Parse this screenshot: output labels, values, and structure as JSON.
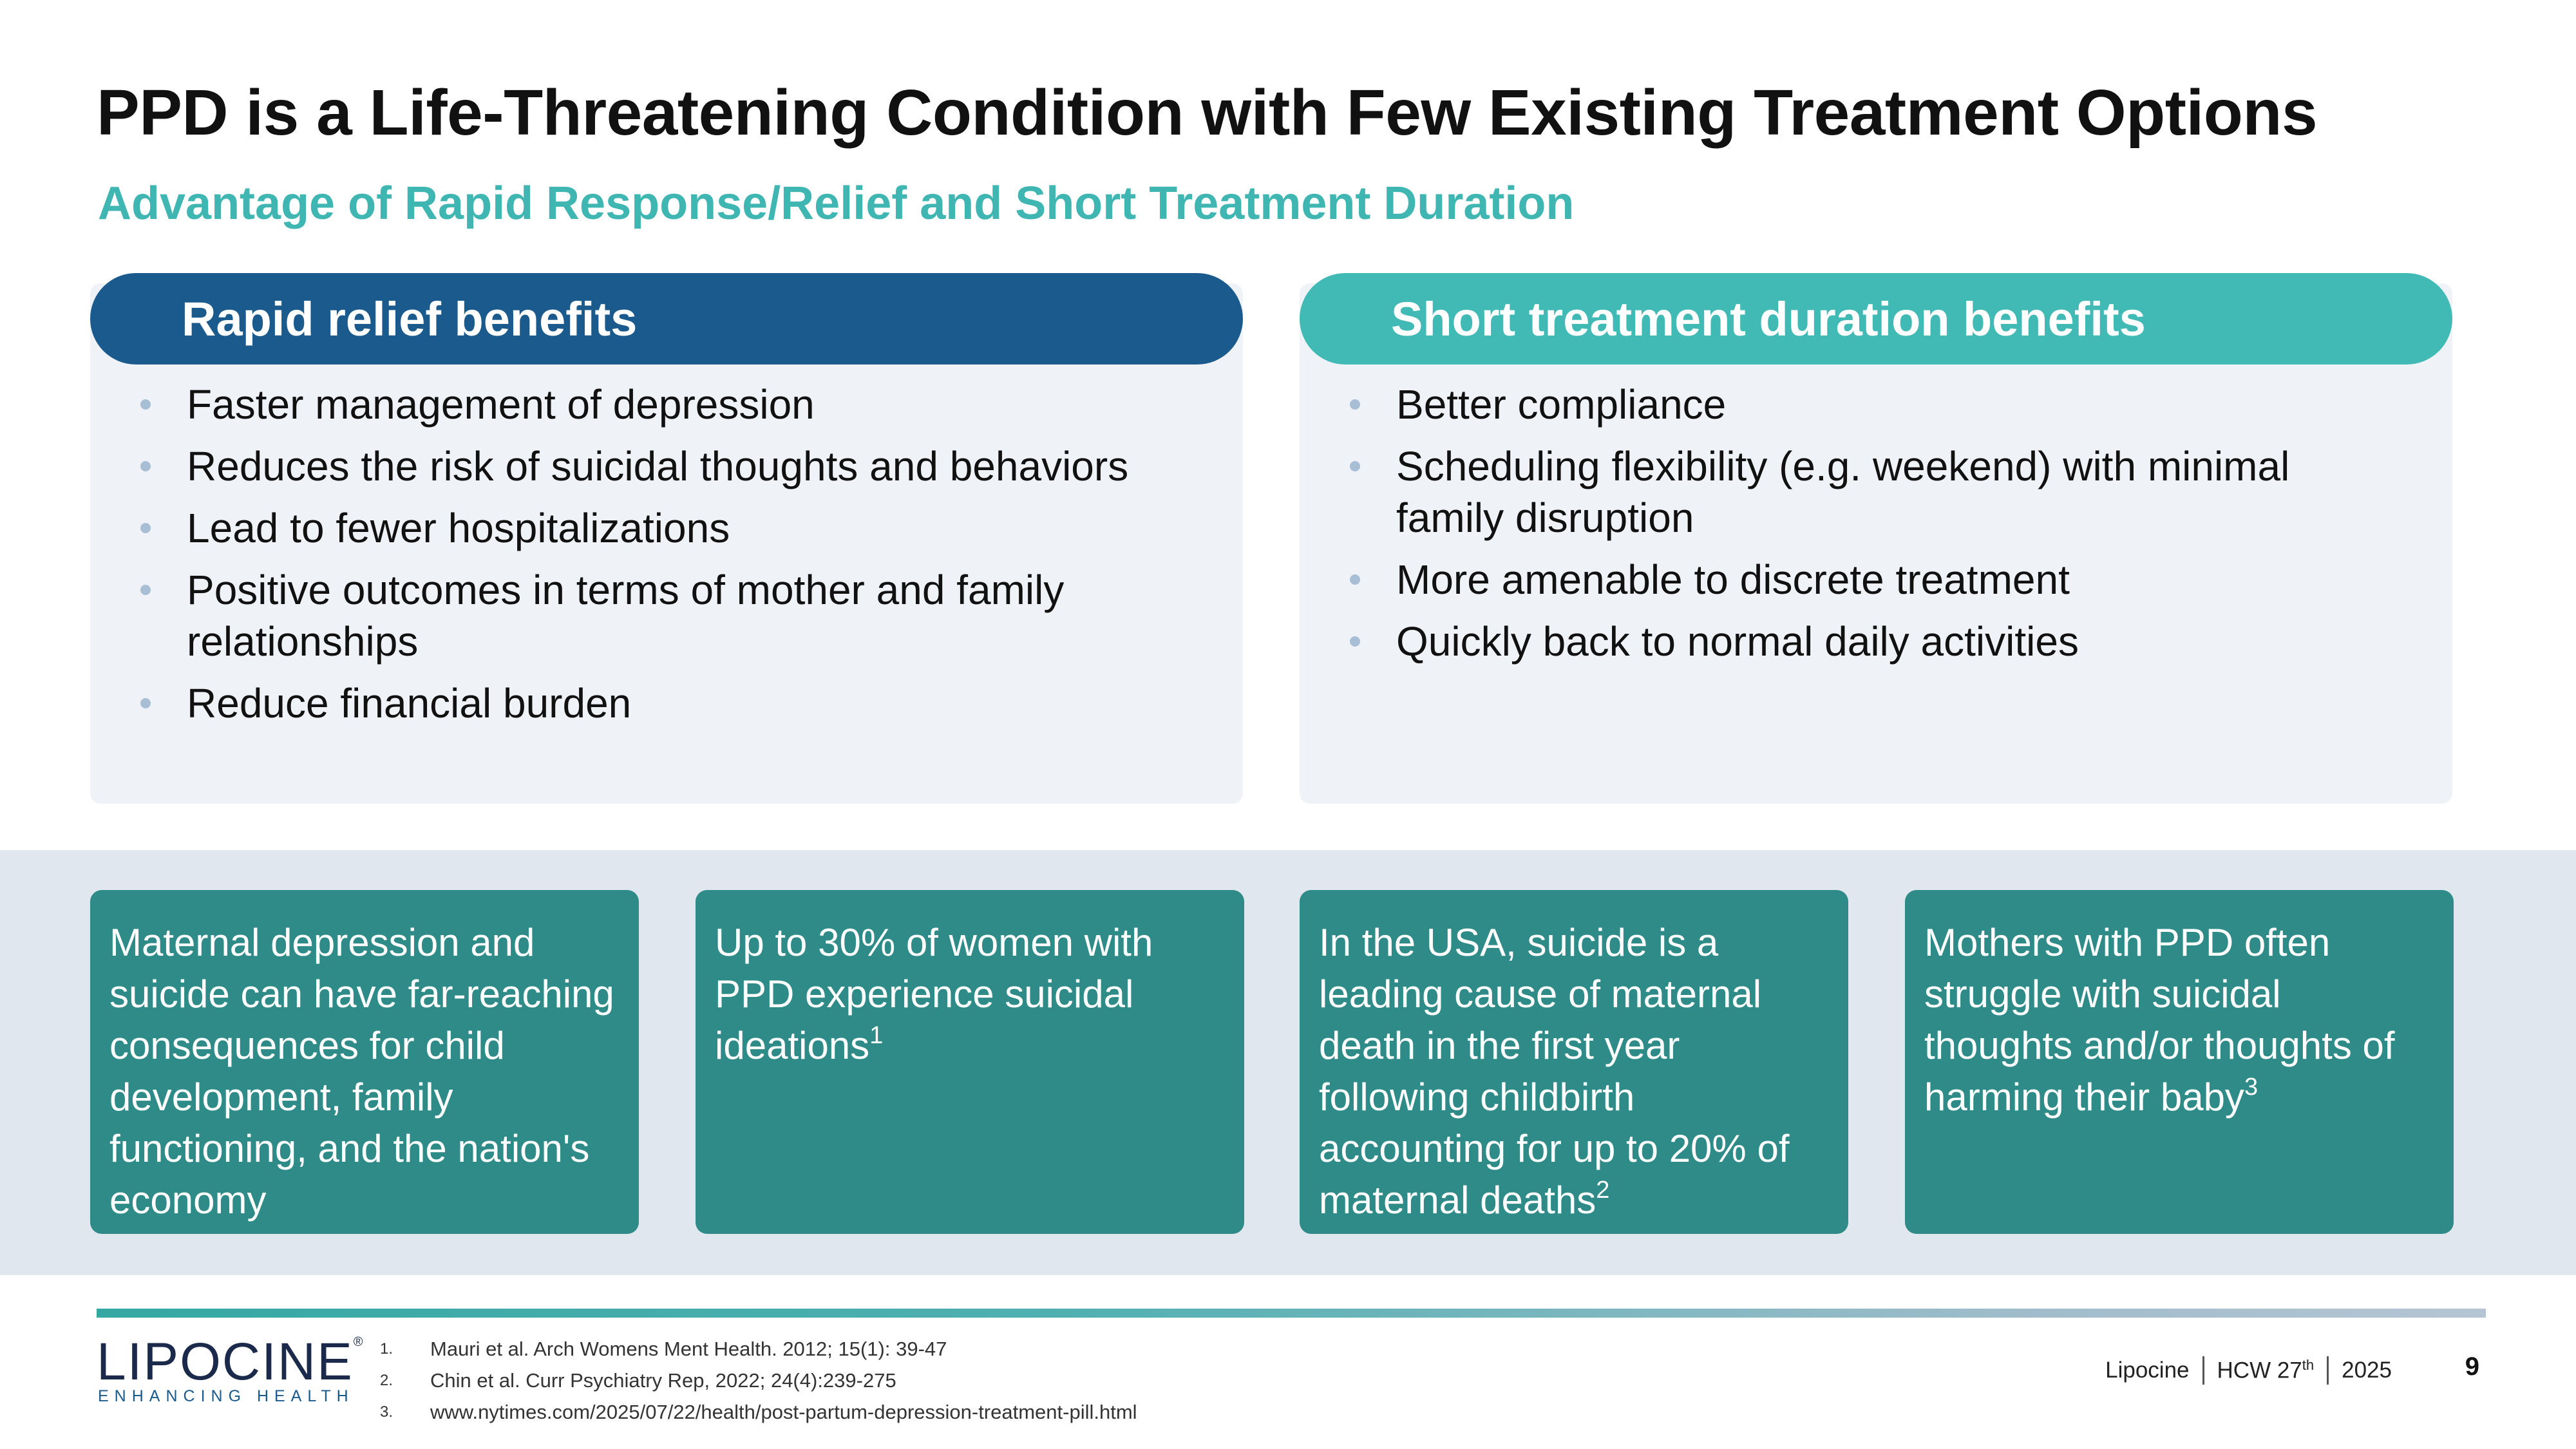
{
  "slide": {
    "title": "PPD is a Life-Threatening Condition with Few Existing Treatment Options",
    "subtitle": "Advantage of Rapid Response/Relief and Short Treatment Duration"
  },
  "left_panel": {
    "heading": "Rapid relief benefits",
    "bullets": [
      "Faster management of depression",
      "Reduces the risk of suicidal thoughts and behaviors",
      "Lead to fewer hospitalizations",
      "Positive outcomes in terms of mother and family relationships",
      "Reduce financial burden"
    ]
  },
  "right_panel": {
    "heading": "Short treatment duration benefits",
    "bullets": [
      "Better compliance",
      "Scheduling flexibility (e.g. weekend) with minimal family disruption",
      "More amenable to discrete treatment",
      "Quickly back to normal daily activities"
    ]
  },
  "cards": [
    {
      "text": "Maternal depression and suicide can have far-reaching consequences for child development, family functioning, and the nation's economy",
      "ref": ""
    },
    {
      "text": "Up to 30% of women with PPD experience suicidal ideations",
      "ref": "1"
    },
    {
      "text": "In the USA, suicide is a leading cause of maternal death in the first year following childbirth accounting for up to 20% of maternal deaths",
      "ref": "2"
    },
    {
      "text": "Mothers with PPD often struggle with suicidal thoughts and/or thoughts of harming their baby",
      "ref": "3"
    }
  ],
  "references": [
    {
      "num": "1.",
      "text": "Mauri et al. Arch Womens Ment Health. 2012; 15(1): 39-47"
    },
    {
      "num": "2.",
      "text": "Chin et al. Curr Psychiatry Rep, 2022; 24(4):239-275"
    },
    {
      "num": "3.",
      "text": "www.nytimes.com/2025/07/22/health/post-partum-depression-treatment-pill.html"
    }
  ],
  "logo": {
    "wordmark": "LIPOCINE",
    "registered": "®",
    "tagline": "ENHANCING HEALTH"
  },
  "footer": {
    "company": "Lipocine",
    "event": "HCW 27",
    "event_sup": "th",
    "year": "2025",
    "page_number": "9"
  },
  "colors": {
    "title": "#111111",
    "subtitle": "#3fb6b2",
    "left_pill": "#1b5a8c",
    "right_pill": "#41bab5",
    "card": "#2e8b87",
    "band": "#e1e7ef"
  }
}
